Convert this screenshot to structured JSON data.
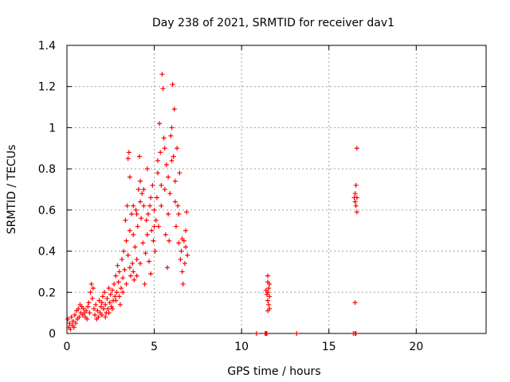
{
  "chart_data": {
    "type": "scatter",
    "title": "Day 238 of 2021, SRMTID for receiver dav1",
    "xlabel": "GPS time / hours",
    "ylabel": "SRMTID / TECUs",
    "xlim": [
      0,
      24
    ],
    "ylim": [
      0,
      1.4
    ],
    "xticks": [
      0,
      5,
      10,
      15,
      20
    ],
    "xtick_labels": [
      "0",
      "5",
      "10",
      "15",
      "20"
    ],
    "yticks": [
      0,
      0.2,
      0.4,
      0.6,
      0.8,
      1.0,
      1.2,
      1.4
    ],
    "ytick_labels": [
      "0",
      "0.2",
      "0.4",
      "0.6",
      "0.8",
      "1",
      "1.2",
      "1.4"
    ],
    "grid": true,
    "marker": "plus",
    "color": "#ff0000",
    "series": [
      {
        "name": "SRMTID",
        "points": [
          [
            0.05,
            0.07
          ],
          [
            0.1,
            0.03
          ],
          [
            0.15,
            0.05
          ],
          [
            0.2,
            0.02
          ],
          [
            0.25,
            0.08
          ],
          [
            0.3,
            0.04
          ],
          [
            0.35,
            0.06
          ],
          [
            0.4,
            0.03
          ],
          [
            0.45,
            0.09
          ],
          [
            0.5,
            0.05
          ],
          [
            0.55,
            0.11
          ],
          [
            0.6,
            0.07
          ],
          [
            0.65,
            0.12
          ],
          [
            0.7,
            0.08
          ],
          [
            0.75,
            0.14
          ],
          [
            0.8,
            0.1
          ],
          [
            0.85,
            0.13
          ],
          [
            0.9,
            0.09
          ],
          [
            0.95,
            0.12
          ],
          [
            1.0,
            0.1
          ],
          [
            1.05,
            0.08
          ],
          [
            1.1,
            0.11
          ],
          [
            1.15,
            0.07
          ],
          [
            1.2,
            0.13
          ],
          [
            1.25,
            0.15
          ],
          [
            1.3,
            0.1
          ],
          [
            1.35,
            0.2
          ],
          [
            1.4,
            0.24
          ],
          [
            1.45,
            0.17
          ],
          [
            1.5,
            0.22
          ],
          [
            1.55,
            0.12
          ],
          [
            1.6,
            0.09
          ],
          [
            1.65,
            0.14
          ],
          [
            1.7,
            0.07
          ],
          [
            1.75,
            0.11
          ],
          [
            1.8,
            0.08
          ],
          [
            1.85,
            0.16
          ],
          [
            1.9,
            0.1
          ],
          [
            1.95,
            0.13
          ],
          [
            2.0,
            0.09
          ],
          [
            2.05,
            0.18
          ],
          [
            2.1,
            0.12
          ],
          [
            2.15,
            0.2
          ],
          [
            2.2,
            0.14
          ],
          [
            2.25,
            0.1
          ],
          [
            2.3,
            0.17
          ],
          [
            2.35,
            0.12
          ],
          [
            2.4,
            0.22
          ],
          [
            2.45,
            0.15
          ],
          [
            2.5,
            0.19
          ],
          [
            2.55,
            0.13
          ],
          [
            2.6,
            0.21
          ],
          [
            2.65,
            0.16
          ],
          [
            2.7,
            0.24
          ],
          [
            2.75,
            0.18
          ],
          [
            2.8,
            0.28
          ],
          [
            2.85,
            0.2
          ],
          [
            2.9,
            0.33
          ],
          [
            2.95,
            0.25
          ],
          [
            3.0,
            0.3
          ],
          [
            3.05,
            0.14
          ],
          [
            3.1,
            0.22
          ],
          [
            3.15,
            0.36
          ],
          [
            3.2,
            0.27
          ],
          [
            3.25,
            0.4
          ],
          [
            3.3,
            0.31
          ],
          [
            3.35,
            0.55
          ],
          [
            3.4,
            0.45
          ],
          [
            3.45,
            0.62
          ],
          [
            3.5,
            0.38
          ],
          [
            3.55,
            0.88
          ],
          [
            3.6,
            0.5
          ],
          [
            3.65,
            0.28
          ],
          [
            3.7,
            0.58
          ],
          [
            3.75,
            0.34
          ],
          [
            3.8,
            0.48
          ],
          [
            3.85,
            0.26
          ],
          [
            3.9,
            0.42
          ],
          [
            3.95,
            0.6
          ],
          [
            4.0,
            0.36
          ],
          [
            4.05,
            0.52
          ],
          [
            4.1,
            0.7
          ],
          [
            4.15,
            0.86
          ],
          [
            4.2,
            0.74
          ],
          [
            4.25,
            0.56
          ],
          [
            4.3,
            0.68
          ],
          [
            4.35,
            0.44
          ],
          [
            4.4,
            0.62
          ],
          [
            4.45,
            0.24
          ],
          [
            4.5,
            0.39
          ],
          [
            4.55,
            0.55
          ],
          [
            4.6,
            0.48
          ],
          [
            4.65,
            0.58
          ],
          [
            4.7,
            0.35
          ],
          [
            4.75,
            0.62
          ],
          [
            4.8,
            0.29
          ],
          [
            4.85,
            0.5
          ],
          [
            4.9,
            0.72
          ],
          [
            4.95,
            0.45
          ],
          [
            5.0,
            0.6
          ],
          [
            5.05,
            0.4
          ],
          [
            5.1,
            0.55
          ],
          [
            5.15,
            0.66
          ],
          [
            5.2,
            0.78
          ],
          [
            5.25,
            0.52
          ],
          [
            5.3,
            1.02
          ],
          [
            5.35,
            0.88
          ],
          [
            5.4,
            0.62
          ],
          [
            5.45,
            1.26
          ],
          [
            5.5,
            1.19
          ],
          [
            5.55,
            0.95
          ],
          [
            5.6,
            0.7
          ],
          [
            5.65,
            0.48
          ],
          [
            5.7,
            0.82
          ],
          [
            5.75,
            0.32
          ],
          [
            5.8,
            0.58
          ],
          [
            5.85,
            0.45
          ],
          [
            5.9,
            0.68
          ],
          [
            5.95,
            0.96
          ],
          [
            6.0,
            1.0
          ],
          [
            6.05,
            1.21
          ],
          [
            6.1,
            0.86
          ],
          [
            6.15,
            1.09
          ],
          [
            6.2,
            0.74
          ],
          [
            6.25,
            0.52
          ],
          [
            6.3,
            0.9
          ],
          [
            6.35,
            0.62
          ],
          [
            6.4,
            0.44
          ],
          [
            6.45,
            0.78
          ],
          [
            6.5,
            0.36
          ],
          [
            6.55,
            0.4
          ],
          [
            6.6,
            0.3
          ],
          [
            6.65,
            0.24
          ],
          [
            6.7,
            0.45
          ],
          [
            6.75,
            0.34
          ],
          [
            6.8,
            0.5
          ],
          [
            6.85,
            0.59
          ],
          [
            6.9,
            0.38
          ],
          [
            3.5,
            0.85
          ],
          [
            3.6,
            0.76
          ],
          [
            3.8,
            0.62
          ],
          [
            4.0,
            0.58
          ],
          [
            4.2,
            0.64
          ],
          [
            4.4,
            0.7
          ],
          [
            4.6,
            0.8
          ],
          [
            4.8,
            0.66
          ],
          [
            5.0,
            0.52
          ],
          [
            5.2,
            0.84
          ],
          [
            5.4,
            0.72
          ],
          [
            5.6,
            0.9
          ],
          [
            5.8,
            0.76
          ],
          [
            6.0,
            0.84
          ],
          [
            6.2,
            0.64
          ],
          [
            6.4,
            0.58
          ],
          [
            6.6,
            0.46
          ],
          [
            6.8,
            0.42
          ],
          [
            2.0,
            0.15
          ],
          [
            2.2,
            0.08
          ],
          [
            2.4,
            0.1
          ],
          [
            2.6,
            0.12
          ],
          [
            2.8,
            0.16
          ],
          [
            3.0,
            0.18
          ],
          [
            3.2,
            0.2
          ],
          [
            3.4,
            0.24
          ],
          [
            3.6,
            0.32
          ],
          [
            3.8,
            0.3
          ],
          [
            4.0,
            0.28
          ],
          [
            4.2,
            0.34
          ],
          [
            11.5,
            0.28
          ],
          [
            11.5,
            0.25
          ],
          [
            11.55,
            0.22
          ],
          [
            11.5,
            0.2
          ],
          [
            11.6,
            0.18
          ],
          [
            11.5,
            0.16
          ],
          [
            11.55,
            0.14
          ],
          [
            11.6,
            0.24
          ],
          [
            11.4,
            0.21
          ],
          [
            11.45,
            0.19
          ],
          [
            11.5,
            0.11
          ],
          [
            11.6,
            0.12
          ],
          [
            11.45,
            0.0
          ],
          [
            11.35,
            0.0
          ],
          [
            11.4,
            0.0
          ],
          [
            10.85,
            0.0
          ],
          [
            13.15,
            0.0
          ],
          [
            16.4,
            0.0
          ],
          [
            16.5,
            0.0
          ],
          [
            16.55,
            0.0
          ],
          [
            16.6,
            0.9
          ],
          [
            16.55,
            0.72
          ],
          [
            16.5,
            0.68
          ],
          [
            16.6,
            0.66
          ],
          [
            16.5,
            0.64
          ],
          [
            16.55,
            0.62
          ],
          [
            16.6,
            0.59
          ],
          [
            16.45,
            0.66
          ],
          [
            16.5,
            0.15
          ]
        ]
      }
    ]
  }
}
